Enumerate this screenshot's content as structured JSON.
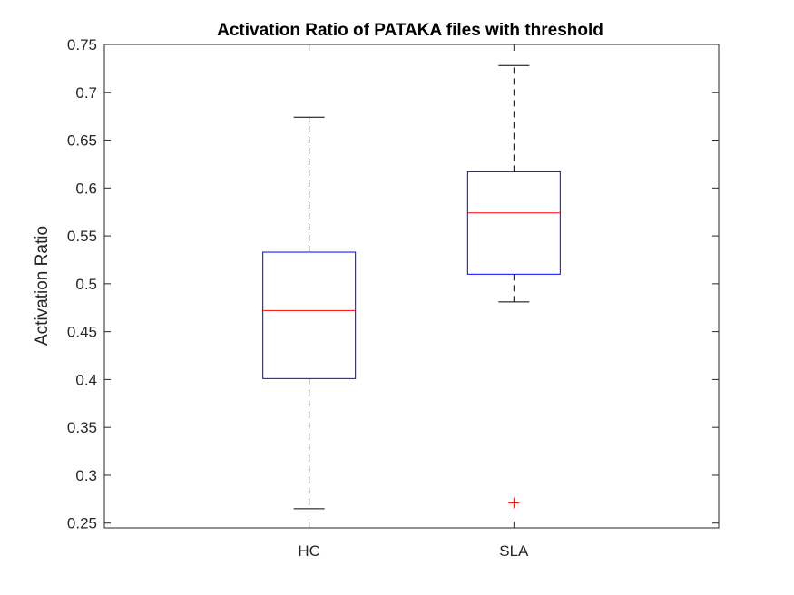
{
  "chart_data": {
    "type": "box",
    "title": "Activation Ratio of PATAKA files with threshold",
    "xlabel": "",
    "ylabel": "Activation Ratio",
    "ylim": [
      0.245,
      0.75
    ],
    "yticks": [
      "0.25",
      "0.3",
      "0.35",
      "0.4",
      "0.45",
      "0.5",
      "0.55",
      "0.6",
      "0.65",
      "0.7",
      "0.75"
    ],
    "categories": [
      "HC",
      "SLA"
    ],
    "boxes": [
      {
        "category": "HC",
        "whisker_low": 0.265,
        "q1": 0.401,
        "median": 0.472,
        "q3": 0.533,
        "whisker_high": 0.674,
        "outliers": []
      },
      {
        "category": "SLA",
        "whisker_low": 0.481,
        "q1": 0.51,
        "median": 0.574,
        "q3": 0.617,
        "whisker_high": 0.728,
        "outliers": [
          0.271
        ]
      }
    ],
    "grid": false,
    "colors": {
      "box": "#0000ff",
      "median": "#ff0000",
      "whisker": "#000000",
      "outlier": "#ff0000",
      "axes": "#262626"
    }
  }
}
